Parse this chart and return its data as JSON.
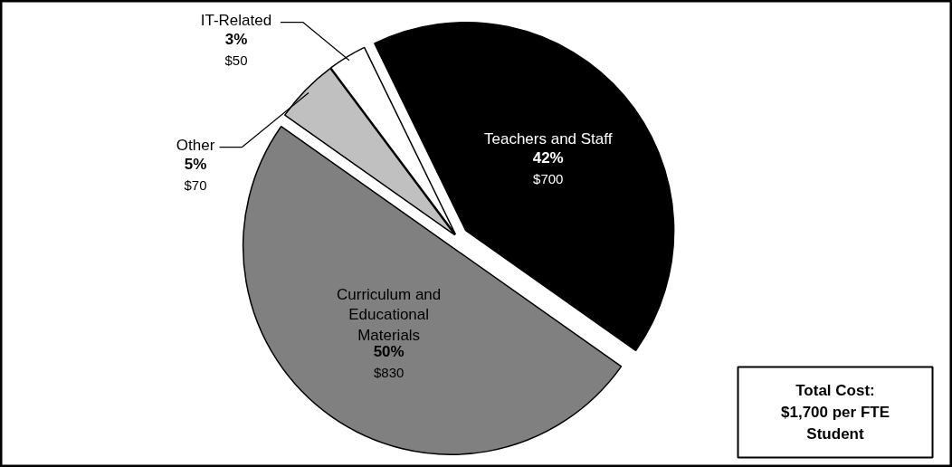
{
  "chart_data": {
    "type": "pie",
    "categories": [
      "Teachers and Staff",
      "Curriculum and\nEducational\nMaterials",
      "Other",
      "IT-Related"
    ],
    "values": [
      42,
      50,
      5,
      3
    ],
    "colors": [
      "#000000",
      "#808080",
      "#c0c0c0",
      "#ffffff"
    ],
    "value_labels": [
      "42%",
      "50%",
      "5%",
      "3%"
    ],
    "annotations": [
      {
        "text": "$700",
        "x": "Teachers and Staff"
      },
      {
        "text": "$830",
        "x": "Curriculum and\nEducational\nMaterials"
      },
      {
        "text": "$70",
        "x": "Other"
      },
      {
        "text": "$50",
        "x": "IT-Related"
      },
      "Total Cost:\n$1,700 per FTE\nStudent"
    ]
  }
}
